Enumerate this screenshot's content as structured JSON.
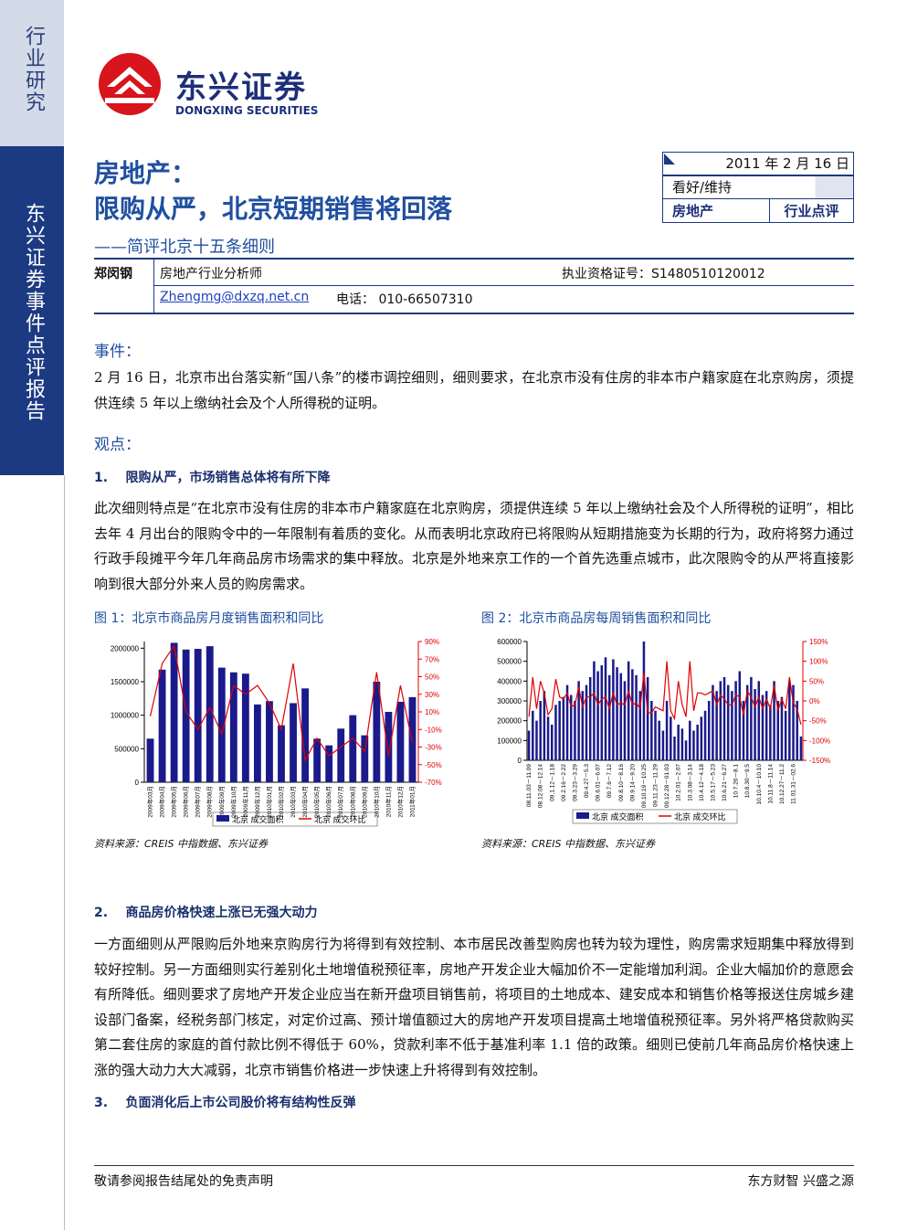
{
  "sidebar": {
    "top": "行业研究",
    "bottom": "东兴证券事件点评报告"
  },
  "header": {
    "logo_cn": "东兴证券",
    "logo_en": "DONGXING SECURITIES",
    "title_1": "房地产：",
    "title_2": "限购从严，北京短期销售将回落",
    "subtitle": "——简评北京十五条细则"
  },
  "info_box": {
    "date": "2011 年 2 月 16 日",
    "rating": "看好/维持",
    "industry": "房地产",
    "report_type": "行业点评"
  },
  "analyst": {
    "name": "郑闵钢",
    "role": "房地产行业分析师",
    "license": "执业资格证号：S1480510120012",
    "email": "Zhengmg@dxzq.net.cn",
    "phone": "电话：   010-66507310"
  },
  "body": {
    "event_heading": "事件：",
    "event_text": "2 月 16 日，北京市出台落实新“国八条”的楼市调控细则，细则要求，在北京市没有住房的非本市户籍家庭在北京购房，须提供连续 5 年以上缴纳社会及个人所得税的证明。",
    "view_heading": "观点：",
    "section_1": "1.    限购从严，市场销售总体将有所下降",
    "text_1": "此次细则特点是“在北京市没有住房的非本市户籍家庭在北京购房，须提供连续 5 年以上缴纳社会及个人所得税的证明”，相比去年 4 月出台的限购令中的一年限制有着质的变化。从而表明北京政府已将限购从短期措施变为长期的行为，政府将努力通过行政手段摊平今年几年商品房市场需求的集中释放。北京是外地来京工作的一个首先选重点城市，此次限购令的从严将直接影响到很大部分外来人员的购房需求。",
    "section_2": "2.    商品房价格快速上涨已无强大动力",
    "text_2": "一方面细则从严限购后外地来京购房行为将得到有效控制、本市居民改善型购房也转为较为理性，购房需求短期集中释放得到较好控制。另一方面细则实行差别化土地增值税预征率，房地产开发企业大幅加价不一定能增加利润。企业大幅加价的意愿会有所降低。细则要求了房地产开发企业应当在新开盘项目销售前，将项目的土地成本、建安成本和销售价格等报送住房城乡建设部门备案，经税务部门核定，对定价过高、预计增值额过大的房地产开发项目提高土地增值税预征率。另外将严格贷款购买第二套住房的家庭的首付款比例不得低于 60%，贷款利率不低于基准利率 1.1 倍的政策。细则已使前几年商品房价格快速上涨的强大动力大大减弱，北京市销售价格进一步快速上升将得到有效控制。",
    "section_3": "3.    负面消化后上市公司股价将有结构性反弹"
  },
  "footer": {
    "left": "敬请参阅报告结尾处的免责声明",
    "right": "东方财智  兴盛之源"
  },
  "chart_data": [
    {
      "type": "bar",
      "title": "图 1：北京市商品房月度销售面积和同比",
      "source": "资料来源：CREIS 中指数据、东兴证券",
      "categories": [
        "2009年03月",
        "2009年04月",
        "2009年05月",
        "2009年06月",
        "2009年07月",
        "2009年08月",
        "2009年09月",
        "2009年10月",
        "2009年11月",
        "2009年12月",
        "2010年01月",
        "2010年02月",
        "2010年03月",
        "2010年04月",
        "2010年05月",
        "2010年06月",
        "2010年07月",
        "2010年08月",
        "2010年09月",
        "2010年10月",
        "2010年11月",
        "2010年12月",
        "2011年01月"
      ],
      "series": [
        {
          "name": "北京  成交面积",
          "color": "#1a1a8c",
          "values": [
            650000,
            1680000,
            2080000,
            1980000,
            1990000,
            2030000,
            1710000,
            1640000,
            1620000,
            1160000,
            1210000,
            850000,
            1180000,
            1400000,
            650000,
            550000,
            800000,
            1000000,
            700000,
            1500000,
            1050000,
            1200000,
            1270000
          ]
        },
        {
          "name": "北京  成交环比",
          "color": "#e00000",
          "axis": "y2",
          "values": [
            5,
            65,
            85,
            10,
            -10,
            15,
            -15,
            40,
            30,
            40,
            20,
            -10,
            65,
            -45,
            -20,
            -40,
            -30,
            -20,
            -35,
            55,
            -40,
            40,
            -25
          ]
        }
      ],
      "ylim": [
        0,
        2100000
      ],
      "yticks": [
        0,
        500000,
        1000000,
        1500000,
        2000000
      ],
      "y2lim": [
        -70,
        90
      ],
      "y2ticks": [
        {
          "value": -70,
          "label": "-70%"
        },
        {
          "value": -50,
          "label": "-50%"
        },
        {
          "value": -30,
          "label": "-30%"
        },
        {
          "value": -10,
          "label": "-10%"
        },
        {
          "value": 10,
          "label": "10%"
        },
        {
          "value": 30,
          "label": "30%"
        },
        {
          "value": 50,
          "label": "50%"
        },
        {
          "value": 70,
          "label": "70%"
        },
        {
          "value": 90,
          "label": "90%"
        }
      ],
      "legend": "bottom"
    },
    {
      "type": "bar",
      "title": "图 2：北京市商品房每周销售面积和同比",
      "source": "资料来源：CREIS 中指数据、东兴证券",
      "categories": [
        "08.11.03－11.09",
        null,
        null,
        "08.12.08－12.14",
        null,
        null,
        "09.1.12－1.18",
        null,
        null,
        "09.2.16－2.22",
        null,
        null,
        "09.3.23－3.29",
        null,
        null,
        "09.4.27－5.3",
        null,
        null,
        "09.6.01－6.07",
        null,
        null,
        "09.7.6－7.12",
        null,
        null,
        "09.8.10－8.16",
        null,
        null,
        "09.9.14－9.20",
        null,
        null,
        "09.10.19－10.25",
        null,
        null,
        "09.11.23－11.29",
        null,
        null,
        "09.12.28－01.03",
        null,
        null,
        "10.2.01－2.07",
        null,
        null,
        "10.3.08－3.14",
        null,
        null,
        "10.4.12－4.18",
        null,
        null,
        "10.5.17－5.23",
        null,
        null,
        "10.6.21－6.27",
        null,
        null,
        "10.7.26－8.1",
        null,
        null,
        "10.8.30－9.5",
        null,
        null,
        "10.10.4－10.10",
        null,
        null,
        "10.11.8－11.14",
        null,
        null,
        "10.12.27－11.2",
        null,
        null,
        "11.01.31－02.6",
        null,
        null
      ],
      "series": [
        {
          "name": "北京  成交面积",
          "color": "#1a1a8c",
          "values": [
            150000,
            250000,
            200000,
            300000,
            350000,
            220000,
            180000,
            280000,
            300000,
            320000,
            380000,
            330000,
            300000,
            400000,
            350000,
            380000,
            420000,
            500000,
            450000,
            480000,
            520000,
            430000,
            510000,
            470000,
            440000,
            400000,
            500000,
            460000,
            430000,
            350000,
            600000,
            420000,
            300000,
            250000,
            200000,
            150000,
            300000,
            220000,
            120000,
            180000,
            160000,
            100000,
            200000,
            150000,
            180000,
            220000,
            250000,
            300000,
            380000,
            350000,
            400000,
            420000,
            380000,
            350000,
            400000,
            450000,
            300000,
            380000,
            420000,
            360000,
            400000,
            330000,
            350000,
            280000,
            400000,
            300000,
            320000,
            250000,
            400000,
            380000,
            300000,
            120000
          ]
        },
        {
          "name": "北京  成交环比",
          "color": "#e00000",
          "axis": "y2",
          "values": [
            -40,
            60,
            -20,
            50,
            20,
            -35,
            -20,
            55,
            10,
            5,
            20,
            -15,
            -10,
            35,
            -15,
            10,
            10,
            20,
            -10,
            5,
            10,
            -20,
            20,
            -10,
            -5,
            -10,
            25,
            -10,
            -5,
            -20,
            70,
            -30,
            -30,
            -15,
            -20,
            -25,
            100,
            -25,
            -45,
            50,
            -10,
            -40,
            100,
            -25,
            20,
            20,
            15,
            20,
            25,
            -10,
            15,
            5,
            -10,
            -10,
            15,
            10,
            -35,
            25,
            10,
            -15,
            10,
            -20,
            5,
            -20,
            40,
            -25,
            5,
            -20,
            60,
            -5,
            -20,
            -60
          ]
        }
      ],
      "ylim": [
        0,
        600000
      ],
      "yticks": [
        0,
        100000,
        200000,
        300000,
        400000,
        500000,
        600000
      ],
      "y2lim": [
        -150,
        150
      ],
      "y2ticks": [
        {
          "value": -150,
          "label": "-150%"
        },
        {
          "value": -100,
          "label": "-100%"
        },
        {
          "value": -50,
          "label": "-50%"
        },
        {
          "value": 0,
          "label": "0%"
        },
        {
          "value": 50,
          "label": "50%"
        },
        {
          "value": 100,
          "label": "100%"
        },
        {
          "value": 150,
          "label": "150%"
        }
      ],
      "legend": "bottom"
    }
  ]
}
